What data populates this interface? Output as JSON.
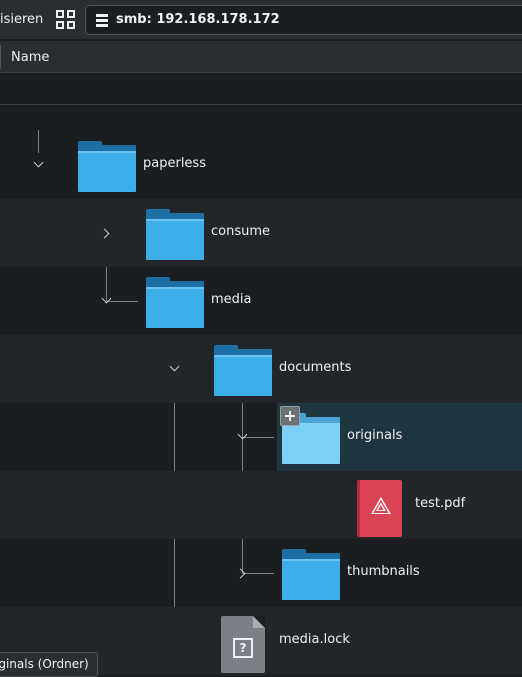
{
  "toolbar": {
    "left_text": "isieren",
    "view_icon": "grid-icon",
    "address": "smb: 192.168.178.172",
    "address_icon": "server-icon"
  },
  "header": {
    "name_label": "Name"
  },
  "items": [
    {
      "name": "paperless",
      "type": "folder",
      "expanded": true
    },
    {
      "name": "consume",
      "type": "folder",
      "expanded": false
    },
    {
      "name": "media",
      "type": "folder",
      "expanded": true
    },
    {
      "name": "documents",
      "type": "folder",
      "expanded": true
    },
    {
      "name": "originals",
      "type": "folder",
      "expanded": true,
      "selected": true
    },
    {
      "name": "test.pdf",
      "type": "pdf-file"
    },
    {
      "name": "thumbnails",
      "type": "folder",
      "expanded": false
    },
    {
      "name": "media.lock",
      "type": "unknown-file"
    }
  ],
  "status": {
    "tooltip": "iginals (Ordner)"
  },
  "colors": {
    "background": "#1b1e20",
    "alt_row": "#232629",
    "selected_row": "#1f3540",
    "folder": "#3daee9",
    "pdf": "#da4453"
  }
}
